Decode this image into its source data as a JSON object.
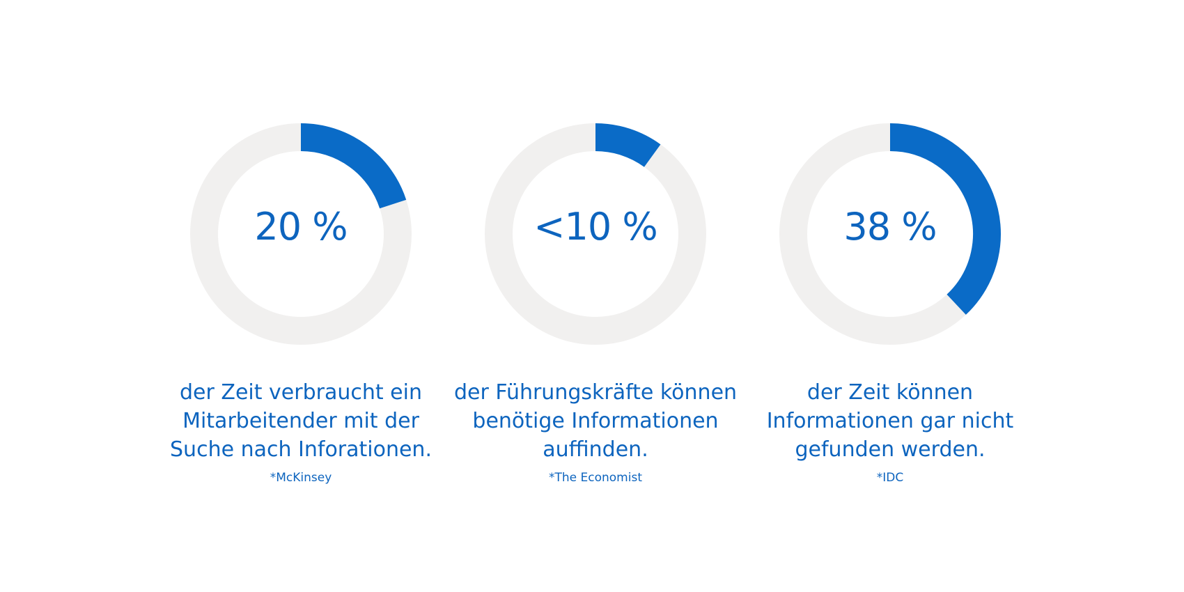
{
  "colors": {
    "accent": "#0a6bc7",
    "track": "#f1f0ef",
    "text": "#0d64be"
  },
  "chart_data": [
    {
      "type": "pie",
      "value": 20,
      "label": "20 %",
      "description": "der Zeit verbraucht ein Mitarbeitender mit der Suche nach Inforationen.",
      "source": "*McKinsey"
    },
    {
      "type": "pie",
      "value": 10,
      "label": "<10 %",
      "description": "der Führungskräfte können benötige Informationen auffinden.",
      "source": "*The Economist"
    },
    {
      "type": "pie",
      "value": 38,
      "label": "38 %",
      "description": "der Zeit können Informationen gar nicht gefunden werden.",
      "source": "*IDC"
    }
  ]
}
